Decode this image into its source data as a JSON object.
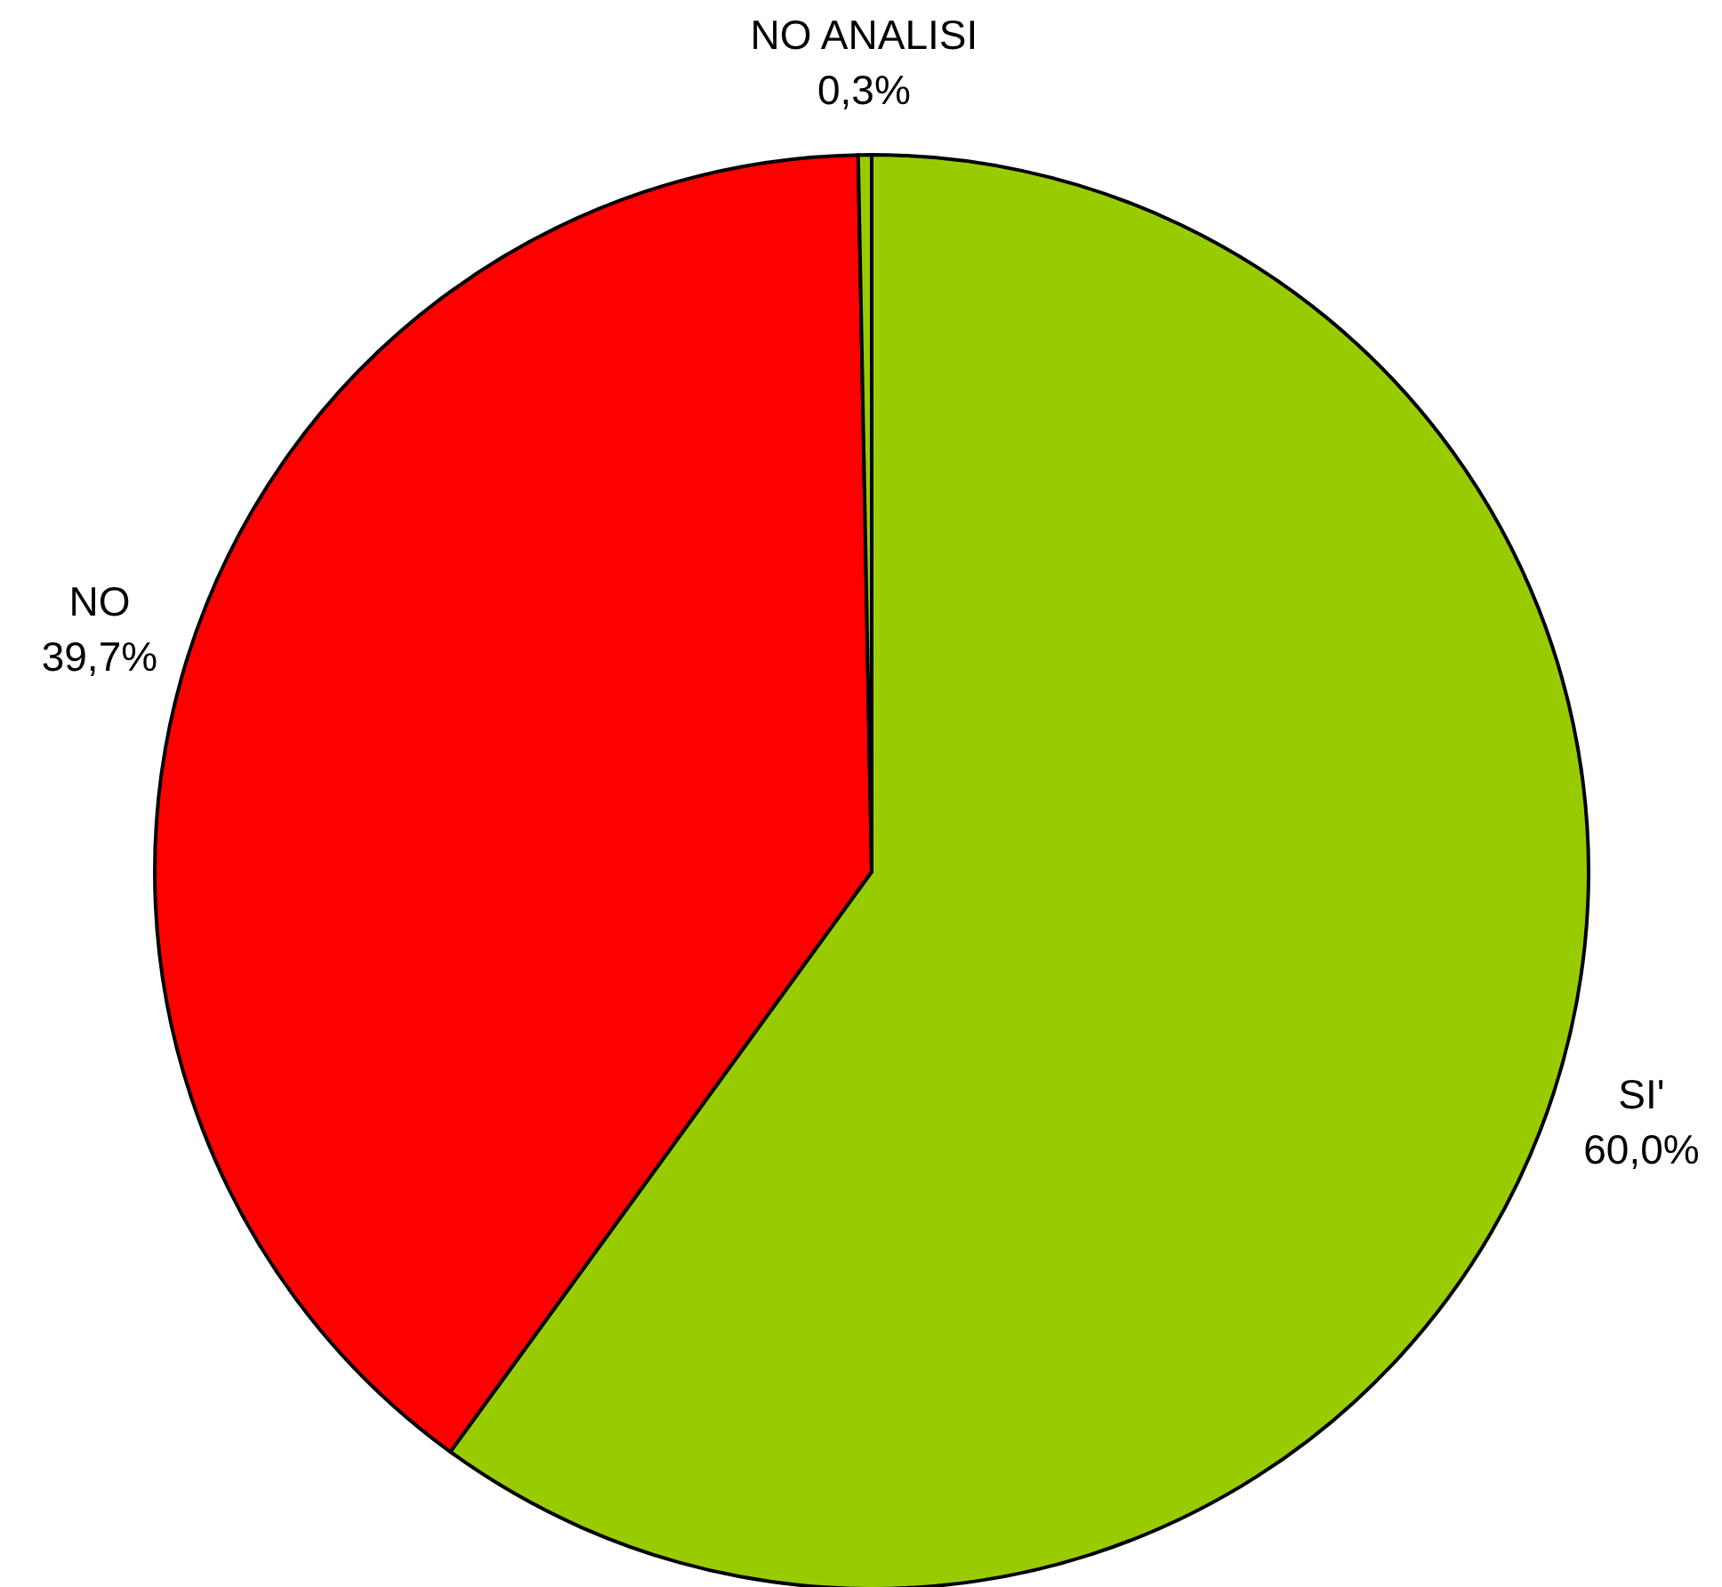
{
  "chart_data": {
    "type": "pie",
    "categories": [
      "SI'",
      "NO",
      "NO ANALISI"
    ],
    "values": [
      60.0,
      39.7,
      0.3
    ],
    "colors": [
      "#99cc00",
      "#ff0000",
      "#99cc00"
    ],
    "value_labels": [
      "60,0%",
      "39,7%",
      "0,3%"
    ]
  }
}
